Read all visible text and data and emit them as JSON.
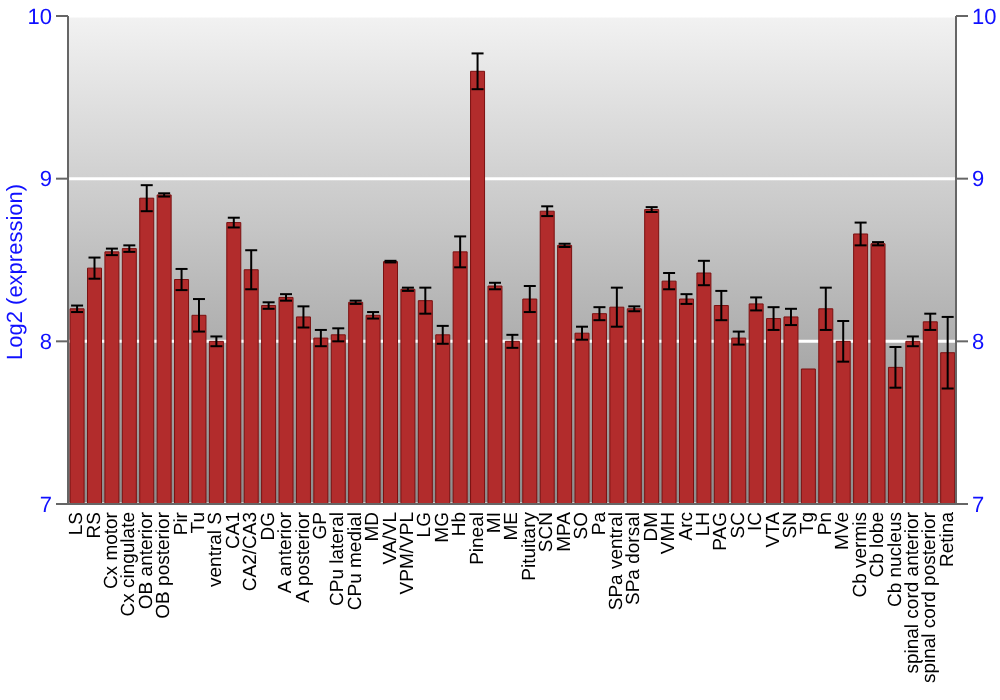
{
  "chart_data": {
    "type": "bar",
    "ylabel": "Log2 (expression)",
    "categories": [
      "LS",
      "RS",
      "Cx motor",
      "Cx cingulate",
      "OB anterior",
      "OB posterior",
      "Pir",
      "Tu",
      "ventral S",
      "CA1",
      "CA2/CA3",
      "DG",
      "A anterior",
      "A posterior",
      "GP",
      "CPu lateral",
      "CPu medial",
      "MD",
      "VA/VL",
      "VPM/VPL",
      "LG",
      "MG",
      "Hb",
      "Pineal",
      "MI",
      "ME",
      "Pituitary",
      "SCN",
      "MPA",
      "SO",
      "Pa",
      "SPa ventral",
      "SPa dorsal",
      "DM",
      "VMH",
      "Arc",
      "LH",
      "PAG",
      "SC",
      "IC",
      "VTA",
      "SN",
      "Tg",
      "Pn",
      "MVe",
      "Cb vermis",
      "Cb lobe",
      "Cb nucleus",
      "spinal cord anterior",
      "spinal cord posterior",
      "Retina"
    ],
    "values": [
      8.2,
      8.45,
      8.55,
      8.57,
      8.88,
      8.9,
      8.38,
      8.16,
      8.0,
      8.73,
      8.44,
      8.22,
      8.27,
      8.15,
      8.02,
      8.04,
      8.24,
      8.16,
      8.49,
      8.32,
      8.25,
      8.04,
      8.55,
      9.66,
      8.34,
      8.0,
      8.26,
      8.8,
      8.59,
      8.05,
      8.17,
      8.21,
      8.2,
      8.81,
      8.37,
      8.26,
      8.42,
      8.22,
      8.02,
      8.23,
      8.14,
      8.15,
      7.83,
      8.2,
      8.0,
      8.66,
      8.6,
      7.84,
      8.0,
      8.12,
      7.93
    ],
    "errors": [
      0.02,
      0.065,
      0.02,
      0.02,
      0.08,
      0.01,
      0.065,
      0.1,
      0.03,
      0.03,
      0.12,
      0.02,
      0.02,
      0.065,
      0.05,
      0.04,
      0.01,
      0.02,
      0.005,
      0.01,
      0.08,
      0.055,
      0.095,
      0.11,
      0.02,
      0.04,
      0.08,
      0.03,
      0.01,
      0.04,
      0.04,
      0.12,
      0.015,
      0.015,
      0.05,
      0.03,
      0.075,
      0.09,
      0.04,
      0.04,
      0.07,
      0.05,
      0.0,
      0.13,
      0.125,
      0.07,
      0.01,
      0.125,
      0.03,
      0.05,
      0.22
    ],
    "color": "#b22c2c",
    "ylim": [
      7,
      10
    ],
    "yticks": [
      7,
      8,
      9,
      10
    ],
    "y2lim": [
      7,
      10
    ],
    "y2ticks": [
      7,
      8,
      9,
      10
    ],
    "grid": "y"
  }
}
